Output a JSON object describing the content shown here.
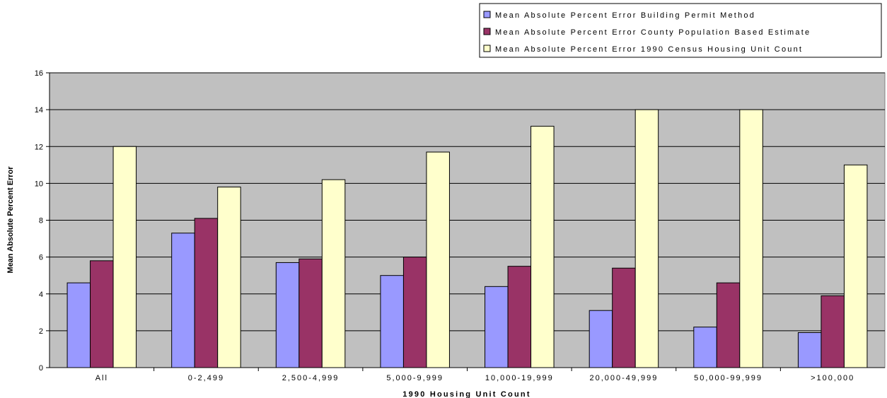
{
  "chart_data": {
    "type": "bar",
    "title": "",
    "xlabel": "1990 Housing Unit Count",
    "ylabel": "Mean Absolute Percent Error",
    "ylim": [
      0,
      16
    ],
    "yticks": [
      0,
      2,
      4,
      6,
      8,
      10,
      12,
      14,
      16
    ],
    "grid": true,
    "legend_position": "top-right",
    "plot_background": "#c0c0c0",
    "categories": [
      "All",
      "0-2,499",
      "2,500-4,999",
      "5,000-9,999",
      "10,000-19,999",
      "20,000-49,999",
      "50,000-99,999",
      ">100,000"
    ],
    "series": [
      {
        "name": "Mean Absolute Percent Error Building Permit Method",
        "color": "#9999ff",
        "values": [
          4.6,
          7.3,
          5.7,
          5.0,
          4.4,
          3.1,
          2.2,
          1.9
        ]
      },
      {
        "name": "Mean Absolute Percent Error County Population Based Estimate",
        "color": "#993366",
        "values": [
          5.8,
          8.1,
          5.9,
          6.0,
          5.5,
          5.4,
          4.6,
          3.9
        ]
      },
      {
        "name": "Mean Absolute Percent Error 1990 Census Housing Unit Count",
        "color": "#ffffcc",
        "values": [
          12.0,
          9.8,
          10.2,
          11.7,
          13.1,
          14.0,
          14.0,
          11.0
        ]
      }
    ]
  }
}
